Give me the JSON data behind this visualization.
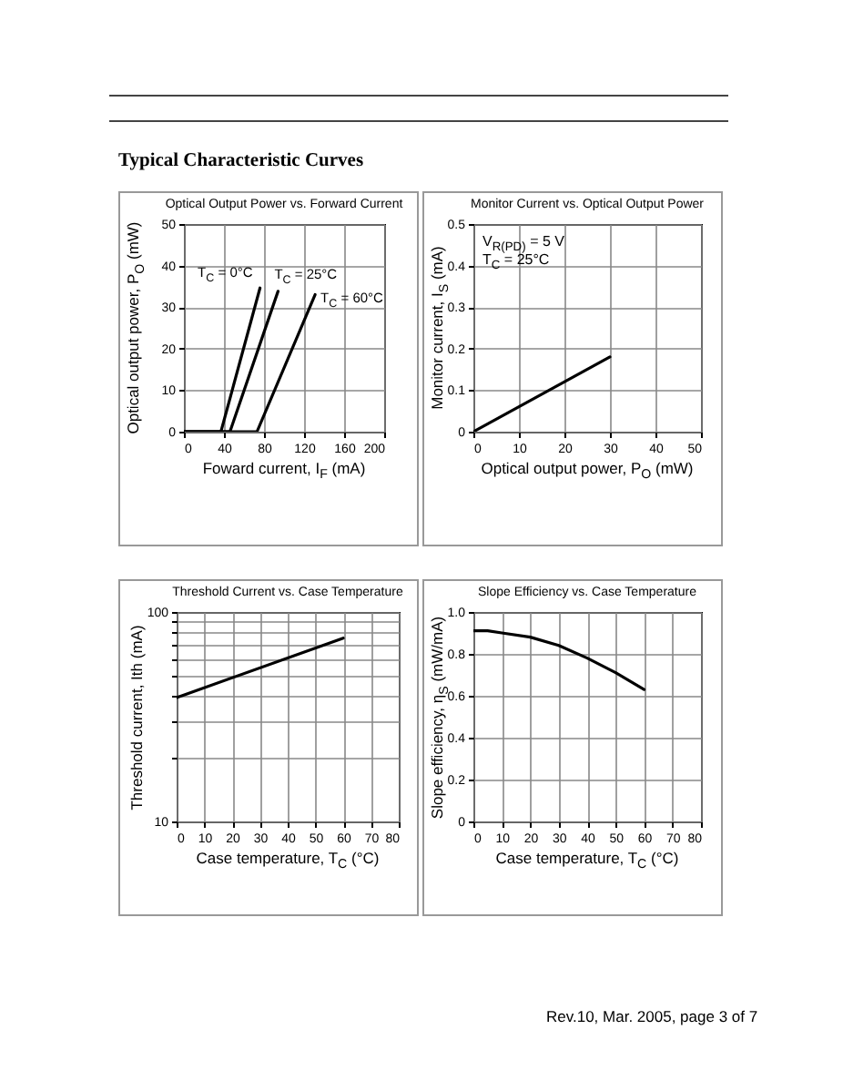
{
  "chart_data": [
    {
      "type": "line",
      "title": "Optical Output Power vs. Forward Current",
      "xlabel": "Foward current, I$_{F}$ (mA)",
      "ylabel": "Optical output power, P$_{O}$ (mW)",
      "annotations": [
        "Typical Characteristic Curves"
      ],
      "series": [
        {
          "name": "T$_{C}$ = 0°C",
          "color": "#000000",
          "x": [
            0,
            37,
            76
          ],
          "values": [
            0,
            0,
            34.6
          ]
        },
        {
          "name": "T$_{C}$ = 25°C",
          "color": "#000000",
          "x": [
            0,
            46,
            94
          ],
          "values": [
            0,
            0,
            33.8
          ]
        },
        {
          "name": "T$_{C}$ = 60°C",
          "color": "#000000",
          "x": [
            0,
            73,
            131
          ],
          "values": [
            0,
            0,
            33
          ]
        }
      ],
      "xlim": [
        0,
        200
      ],
      "xticks": [
        0,
        40,
        80,
        120,
        160,
        200
      ],
      "ylim": [
        0,
        50
      ],
      "yticks": [
        0,
        10,
        20,
        30,
        40,
        50
      ],
      "grid": true
    },
    {
      "type": "line",
      "title": "Monitor Current vs. Optical Output Power",
      "xlabel": "Optical output power, P$_{O}$ (mW)",
      "ylabel": "Monitor current, I$_{S}$ (mA)",
      "annotations": [
        "V$_{R(PD)}$ = 5 V",
        "T$_{C}$ = 25°C"
      ],
      "series": [
        {
          "color": "#000000",
          "x": [
            0,
            30
          ],
          "values": [
            0,
            0.18
          ]
        }
      ],
      "xlim": [
        0,
        50
      ],
      "xticks": [
        0,
        10,
        20,
        30,
        40,
        50
      ],
      "ylim": [
        0,
        0.5
      ],
      "yticks": [
        0,
        0.1,
        0.2,
        0.3,
        0.4,
        0.5
      ],
      "grid": true
    },
    {
      "type": "line",
      "title": "Threshold Current vs. Case Temperature",
      "xlabel": "Case temperature, T$_{C}$ (°C)",
      "ylabel": "Threshold current, Ith (mA)",
      "series": [
        {
          "color": "#000000",
          "x": [
            0,
            60
          ],
          "values": [
            39,
            75
          ]
        }
      ],
      "xlim": [
        0,
        80
      ],
      "xticks": [
        0,
        10,
        20,
        30,
        40,
        50,
        60,
        70,
        80
      ],
      "ylim": [
        10,
        100
      ],
      "log": "y",
      "yticks": [
        10,
        {
          "value": 20,
          "label": null
        },
        {
          "value": 30,
          "label": null
        },
        {
          "value": 40,
          "label": null
        },
        {
          "value": 50,
          "label": null
        },
        {
          "value": 60,
          "label": null
        },
        {
          "value": 70,
          "label": null
        },
        {
          "value": 80,
          "label": null
        },
        {
          "value": 90,
          "label": null
        },
        100
      ],
      "grid": true
    },
    {
      "type": "line",
      "title": "Slope Efficiency vs. Case Temperature",
      "xlabel": "Case temperature, T$_{C}$ (°C)",
      "ylabel": "Slope efficiency, η$_{S}$ (mW/mA)",
      "annotations": [
        "Rev.10, Mar. 2005, page 3 of 7"
      ],
      "series": [
        {
          "color": "#000000",
          "x": [
            0,
            5,
            10,
            20,
            30,
            40,
            50,
            60
          ],
          "values": [
            0.91,
            0.91,
            0.9,
            0.88,
            0.84,
            0.78,
            0.71,
            0.63
          ]
        }
      ],
      "xlim": [
        0,
        80
      ],
      "xticks": [
        0,
        10,
        20,
        30,
        40,
        50,
        60,
        70,
        80
      ],
      "ylim": [
        0,
        1
      ],
      "yticks": [
        0,
        0.2,
        0.4,
        0.6,
        0.8,
        {
          "value": 1,
          "label": "1.0"
        }
      ],
      "grid": true
    }
  ]
}
